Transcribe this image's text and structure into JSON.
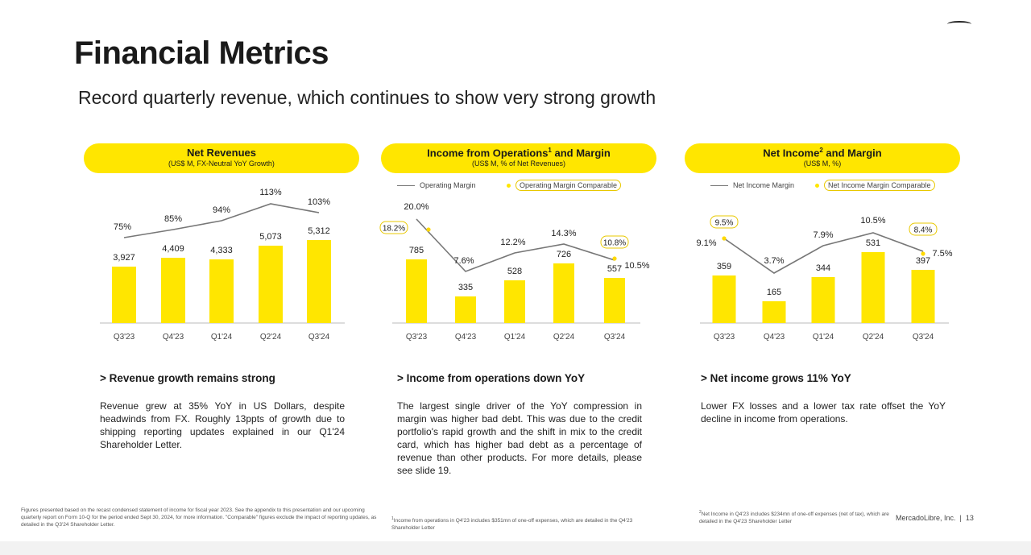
{
  "slide": {
    "title": "Financial Metrics",
    "subtitle": "Record quarterly revenue, which continues to show very strong growth",
    "company": "MercadoLibre, Inc.",
    "page_number": "13",
    "accent_color": "#ffe600"
  },
  "panels": [
    {
      "title": "Net Revenues",
      "title_sup": "",
      "subtitle": "(US$ M, FX-Neutral YoY Growth)",
      "heading": "> Revenue growth remains strong",
      "body": "Revenue grew at 35% YoY in US Dollars, despite headwinds from FX. Roughly 13ppts of growth due to shipping reporting updates explained in our Q1'24 Shareholder Letter.",
      "footnote": "Figures presented based on the recast condensed statement of income for fiscal year 2023. See the appendix to this presentation and our upcoming quarterly report on Form 10-Q for the period ended Sept 30, 2024, for more information. \"Comparable\" figures exclude the impact of reporting updates, as detailed in the Q3'24 Shareholder Letter.",
      "footnote_sup": ""
    },
    {
      "title": "Income from Operations",
      "title_sup": "1",
      "title_suffix": " and Margin",
      "subtitle": "(US$ M, % of Net Revenues)",
      "legend_line": "Operating Margin",
      "legend_dot": "Operating Margin Comparable",
      "heading": "> Income from operations down YoY",
      "body": "The largest single driver of the YoY compression in margin was higher bad debt. This was due to the credit portfolio's rapid growth and the shift in mix to the credit card, which has higher bad debt as a percentage of revenue than other products. For more details, please see slide 19.",
      "footnote": "Income from operations in Q4'23 includes $351mn of one-off expenses, which are detailed in the Q4'23 Shareholder Letter",
      "footnote_sup": "1"
    },
    {
      "title": "Net Income",
      "title_sup": "2",
      "title_suffix": " and Margin",
      "subtitle": "(US$ M, %)",
      "legend_line": "Net Income Margin",
      "legend_dot": "Net Income Margin Comparable",
      "heading": "> Net income grows 11% YoY",
      "body": "Lower FX losses and a lower tax rate offset the YoY decline in income from operations.",
      "footnote": "Net Income in Q4'23 includes $234mn of one-off expenses (net of tax), which are detailed in the Q4'23 Shareholder Letter",
      "footnote_sup": "2"
    }
  ],
  "chart_data": [
    {
      "type": "bar",
      "title": "Net Revenues",
      "categories": [
        "Q3'23",
        "Q4'23",
        "Q1'24",
        "Q2'24",
        "Q3'24"
      ],
      "series": [
        {
          "values": [
            3927,
            4409,
            4333,
            5073,
            5312
          ],
          "labels": [
            "3,927",
            "4,409",
            "4,333",
            "5,073",
            "5,312"
          ],
          "color": "#ffe600"
        }
      ],
      "line": {
        "name": "FX-Neutral YoY Growth",
        "values": [
          75,
          85,
          94,
          113,
          103
        ],
        "labels": [
          "75%",
          "85%",
          "94%",
          "113%",
          "103%"
        ],
        "color": "#777777"
      },
      "ylim": [
        0,
        6000
      ],
      "grid": false
    },
    {
      "type": "bar",
      "title": "Income from Operations and Margin",
      "categories": [
        "Q3'23",
        "Q4'23",
        "Q1'24",
        "Q2'24",
        "Q3'24"
      ],
      "series": [
        {
          "values": [
            785,
            335,
            528,
            726,
            557
          ],
          "labels": [
            "785",
            "335",
            "528",
            "726",
            "557"
          ],
          "color": "#ffe600"
        }
      ],
      "line": {
        "name": "Operating Margin",
        "values": [
          20.0,
          7.6,
          12.2,
          14.3,
          10.5
        ],
        "labels": [
          "20.0%",
          "7.6%",
          "12.2%",
          "14.3%",
          "10.5%"
        ],
        "color": "#777777"
      },
      "comparable": {
        "name": "Operating Margin Comparable",
        "points": [
          {
            "index": 0,
            "value": 18.2,
            "label": "18.2%"
          },
          {
            "index": 4,
            "value": 10.8,
            "label": "10.8%"
          }
        ]
      },
      "ylim": [
        0,
        1100
      ],
      "grid": false,
      "legend_position": "top"
    },
    {
      "type": "bar",
      "title": "Net Income and Margin",
      "categories": [
        "Q3'23",
        "Q4'23",
        "Q1'24",
        "Q2'24",
        "Q3'24"
      ],
      "series": [
        {
          "values": [
            359,
            165,
            344,
            531,
            397
          ],
          "labels": [
            "359",
            "165",
            "344",
            "531",
            "397"
          ],
          "color": "#ffe600"
        }
      ],
      "line": {
        "name": "Net Income Margin",
        "values": [
          9.1,
          3.7,
          7.9,
          10.5,
          7.5
        ],
        "labels": [
          "9.1%",
          "3.7%",
          "7.9%",
          "10.5%",
          "7.5%"
        ],
        "color": "#777777"
      },
      "comparable": {
        "name": "Net Income Margin Comparable",
        "points": [
          {
            "index": 0,
            "value": 9.5,
            "label": "9.5%"
          },
          {
            "index": 4,
            "value": 8.4,
            "label": "8.4%"
          }
        ]
      },
      "ylim": [
        0,
        800
      ],
      "grid": false,
      "legend_position": "top"
    }
  ]
}
